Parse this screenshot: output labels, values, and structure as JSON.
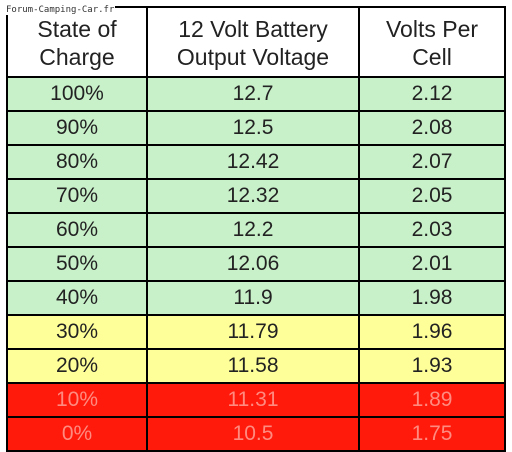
{
  "watermark": "Forum-Camping-Car.fr",
  "table": {
    "headers": [
      [
        "State of",
        "Charge"
      ],
      [
        "12 Volt Battery",
        "Output Voltage"
      ],
      [
        "Volts Per",
        "Cell"
      ]
    ],
    "rows": [
      {
        "cells": [
          "100%",
          "12.7",
          "2.12"
        ],
        "status": "green"
      },
      {
        "cells": [
          "90%",
          "12.5",
          "2.08"
        ],
        "status": "green"
      },
      {
        "cells": [
          "80%",
          "12.42",
          "2.07"
        ],
        "status": "green"
      },
      {
        "cells": [
          "70%",
          "12.32",
          "2.05"
        ],
        "status": "green"
      },
      {
        "cells": [
          "60%",
          "12.2",
          "2.03"
        ],
        "status": "green"
      },
      {
        "cells": [
          "50%",
          "12.06",
          "2.01"
        ],
        "status": "green"
      },
      {
        "cells": [
          "40%",
          "11.9",
          "1.98"
        ],
        "status": "green"
      },
      {
        "cells": [
          "30%",
          "11.79",
          "1.96"
        ],
        "status": "yellow"
      },
      {
        "cells": [
          "20%",
          "11.58",
          "1.93"
        ],
        "status": "yellow"
      },
      {
        "cells": [
          "10%",
          "11.31",
          "1.89"
        ],
        "status": "red"
      },
      {
        "cells": [
          "0%",
          "10.5",
          "1.75"
        ],
        "status": "red"
      }
    ]
  },
  "colors": {
    "green": "#c8f0c9",
    "yellow": "#ffff99",
    "red": "#ff1a0c",
    "red_text": "#ff8a7f",
    "border": "#000000"
  }
}
